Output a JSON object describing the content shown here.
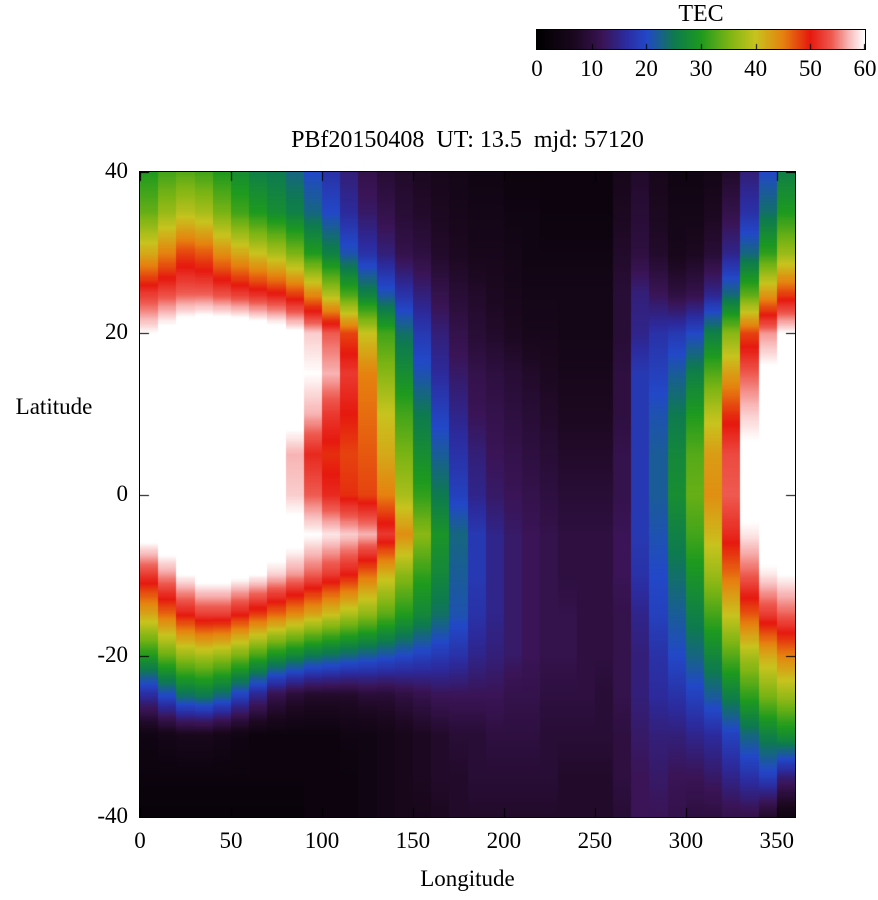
{
  "title": "PBf20150408  UT: 13.5  mjd: 57120",
  "chart_data": {
    "type": "heatmap",
    "title": "PBf20150408  UT: 13.5  mjd: 57120",
    "xlabel": "Longitude",
    "ylabel": "Latitude",
    "xlim": [
      0,
      360
    ],
    "ylim": [
      -40,
      40
    ],
    "x_ticks": [
      0,
      50,
      100,
      150,
      200,
      250,
      300,
      350
    ],
    "y_ticks": [
      40,
      20,
      0,
      -20,
      -40
    ],
    "colorbar": {
      "label": "TEC",
      "min": 0,
      "max": 60,
      "ticks": [
        0,
        10,
        20,
        30,
        40,
        50,
        60
      ]
    },
    "lon": [
      0,
      10,
      20,
      30,
      40,
      50,
      60,
      70,
      80,
      90,
      100,
      110,
      120,
      130,
      140,
      150,
      160,
      170,
      180,
      190,
      200,
      210,
      220,
      230,
      240,
      250,
      260,
      270,
      280,
      290,
      300,
      310,
      320,
      330,
      340,
      350
    ],
    "lat": [
      40,
      35,
      30,
      25,
      20,
      15,
      10,
      5,
      0,
      -5,
      -10,
      -15,
      -20,
      -25,
      -30,
      -35,
      -40
    ],
    "values": [
      [
        30,
        32,
        33,
        32,
        30,
        28,
        26,
        25,
        23,
        20,
        17,
        14,
        11,
        9,
        8,
        7,
        6,
        5,
        4,
        4,
        3,
        3,
        3,
        3,
        3,
        3,
        6,
        8,
        6,
        4,
        4,
        5,
        8,
        14,
        20,
        26
      ],
      [
        34,
        37,
        39,
        38,
        35,
        32,
        30,
        28,
        26,
        23,
        20,
        16,
        13,
        11,
        9,
        8,
        7,
        6,
        5,
        5,
        4,
        4,
        3,
        3,
        3,
        3,
        7,
        9,
        7,
        5,
        5,
        7,
        11,
        17,
        24,
        30
      ],
      [
        42,
        45,
        48,
        47,
        44,
        42,
        40,
        38,
        35,
        30,
        26,
        21,
        17,
        14,
        11,
        10,
        8,
        7,
        6,
        6,
        5,
        4,
        4,
        4,
        4,
        4,
        8,
        10,
        8,
        6,
        7,
        9,
        15,
        23,
        31,
        37
      ],
      [
        52,
        53,
        54,
        54,
        53,
        52,
        51,
        50,
        48,
        44,
        38,
        32,
        26,
        21,
        17,
        14,
        11,
        9,
        8,
        7,
        6,
        5,
        5,
        5,
        5,
        5,
        9,
        14,
        12,
        10,
        11,
        15,
        23,
        33,
        43,
        48
      ],
      [
        60,
        62,
        64,
        65,
        65,
        65,
        64,
        63,
        61,
        58,
        54,
        48,
        40,
        32,
        24,
        18,
        14,
        11,
        9,
        8,
        7,
        6,
        6,
        5,
        5,
        5,
        9,
        15,
        17,
        18,
        20,
        26,
        36,
        48,
        56,
        60
      ],
      [
        63,
        65,
        65,
        65,
        65,
        65,
        65,
        65,
        63,
        60,
        57,
        52,
        45,
        36,
        28,
        21,
        16,
        13,
        11,
        10,
        9,
        8,
        7,
        6,
        6,
        6,
        10,
        18,
        19,
        22,
        26,
        33,
        43,
        54,
        61,
        64
      ],
      [
        65,
        65,
        65,
        65,
        65,
        65,
        65,
        65,
        62,
        57,
        52,
        50,
        46,
        40,
        32,
        25,
        19,
        15,
        12,
        11,
        10,
        9,
        8,
        7,
        7,
        7,
        10,
        18,
        21,
        25,
        30,
        39,
        49,
        58,
        64,
        65
      ],
      [
        65,
        65,
        65,
        65,
        65,
        65,
        65,
        63,
        57,
        51,
        49,
        48,
        47,
        42,
        35,
        28,
        22,
        17,
        14,
        12,
        11,
        10,
        9,
        8,
        8,
        8,
        11,
        18,
        22,
        27,
        33,
        43,
        53,
        61,
        65,
        65
      ],
      [
        65,
        65,
        65,
        65,
        65,
        65,
        64,
        62,
        58,
        54,
        51,
        49,
        48,
        45,
        38,
        31,
        25,
        19,
        15,
        13,
        12,
        11,
        10,
        9,
        9,
        9,
        11,
        18,
        22,
        28,
        34,
        44,
        54,
        62,
        65,
        65
      ],
      [
        62,
        64,
        65,
        65,
        65,
        65,
        65,
        64,
        62,
        60,
        59,
        58,
        57,
        52,
        44,
        36,
        29,
        23,
        18,
        15,
        13,
        12,
        11,
        10,
        10,
        10,
        12,
        18,
        21,
        26,
        32,
        41,
        51,
        59,
        63,
        64
      ],
      [
        52,
        56,
        60,
        62,
        62,
        61,
        60,
        58,
        56,
        54,
        52,
        50,
        46,
        41,
        36,
        31,
        27,
        22,
        18,
        15,
        13,
        12,
        11,
        10,
        10,
        10,
        12,
        17,
        20,
        24,
        29,
        37,
        46,
        54,
        59,
        60
      ],
      [
        42,
        46,
        50,
        52,
        52,
        50,
        48,
        46,
        44,
        42,
        40,
        38,
        36,
        33,
        30,
        27,
        24,
        21,
        17,
        15,
        13,
        12,
        11,
        11,
        10,
        10,
        11,
        15,
        19,
        22,
        26,
        32,
        40,
        47,
        52,
        54
      ],
      [
        30,
        34,
        37,
        38,
        37,
        35,
        32,
        29,
        27,
        25,
        24,
        23,
        22,
        21,
        20,
        19,
        18,
        17,
        15,
        14,
        13,
        12,
        11,
        11,
        10,
        10,
        11,
        14,
        17,
        20,
        23,
        27,
        33,
        38,
        42,
        45
      ],
      [
        16,
        20,
        24,
        25,
        23,
        19,
        15,
        11,
        9,
        8,
        8,
        8,
        9,
        9,
        10,
        11,
        12,
        12,
        12,
        12,
        11,
        11,
        10,
        10,
        10,
        9,
        11,
        14,
        16,
        17,
        19,
        22,
        26,
        31,
        35,
        37
      ],
      [
        4,
        5,
        6,
        6,
        5,
        4,
        3,
        3,
        3,
        3,
        3,
        4,
        4,
        5,
        6,
        7,
        8,
        9,
        9,
        10,
        10,
        10,
        9,
        9,
        9,
        9,
        10,
        13,
        14,
        14,
        15,
        16,
        19,
        23,
        26,
        28
      ],
      [
        3,
        3,
        3,
        3,
        3,
        3,
        3,
        3,
        3,
        3,
        3,
        3,
        4,
        5,
        6,
        7,
        8,
        8,
        9,
        9,
        9,
        9,
        9,
        8,
        8,
        8,
        10,
        12,
        13,
        12,
        12,
        13,
        15,
        17,
        19,
        14
      ],
      [
        2,
        2,
        2,
        2,
        2,
        2,
        2,
        2,
        2,
        3,
        3,
        3,
        4,
        5,
        6,
        6,
        7,
        8,
        8,
        8,
        8,
        8,
        8,
        8,
        8,
        8,
        9,
        12,
        12,
        11,
        10,
        10,
        11,
        11,
        8,
        4
      ]
    ],
    "palette": [
      {
        "v": 0,
        "c": "#000000"
      },
      {
        "v": 7,
        "c": "#1c0820"
      },
      {
        "v": 12,
        "c": "#3a1456"
      },
      {
        "v": 16,
        "c": "#2c2a9c"
      },
      {
        "v": 20,
        "c": "#2248c8"
      },
      {
        "v": 25,
        "c": "#0e7a50"
      },
      {
        "v": 30,
        "c": "#1e9a1e"
      },
      {
        "v": 35,
        "c": "#7ab414"
      },
      {
        "v": 40,
        "c": "#c8c31e"
      },
      {
        "v": 45,
        "c": "#e6820f"
      },
      {
        "v": 50,
        "c": "#e6190f"
      },
      {
        "v": 54,
        "c": "#ee5a50"
      },
      {
        "v": 57,
        "c": "#f8b4b4"
      },
      {
        "v": 60,
        "c": "#ffffff"
      }
    ]
  }
}
